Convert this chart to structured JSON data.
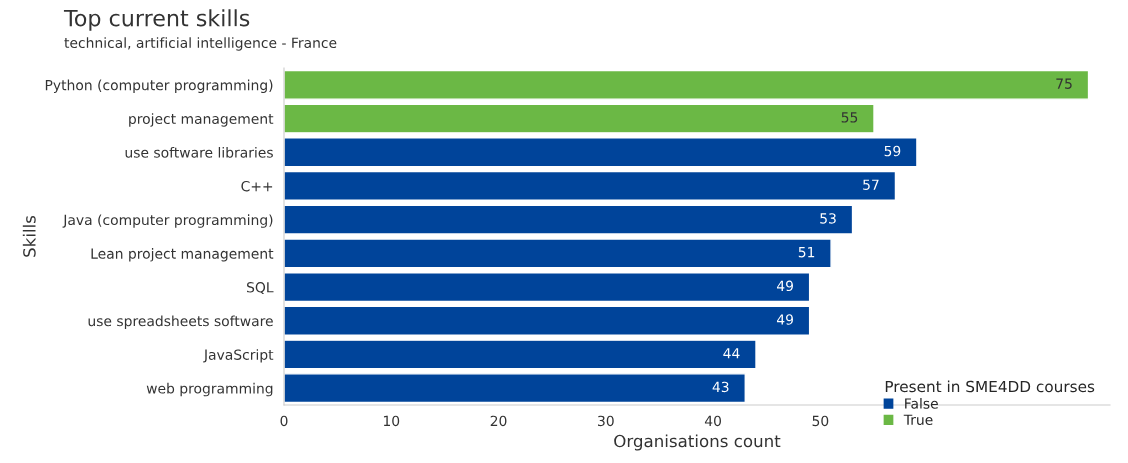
{
  "chart_data": {
    "type": "bar",
    "orientation": "horizontal",
    "title": "Top current skills",
    "subtitle": "technical, artificial intelligence - France",
    "xlabel": "Organisations count",
    "ylabel": "Skills",
    "legend_title": "Present in SME4DD courses",
    "legend": "bottom right",
    "categories": [
      "Python (computer programming)",
      "project management",
      "use software libraries",
      "C++",
      "Java (computer programming)",
      "Lean project management",
      "SQL",
      "use spreadsheets software",
      "JavaScript",
      "web programming"
    ],
    "series": [
      {
        "name": "False",
        "color": "#00449a",
        "values": [
          null,
          null,
          59,
          57,
          53,
          51,
          49,
          49,
          44,
          43
        ]
      },
      {
        "name": "True",
        "color": "#6bb845",
        "values": [
          75,
          55,
          null,
          null,
          null,
          null,
          null,
          null,
          null,
          null
        ]
      }
    ],
    "xlim": [
      0,
      77
    ],
    "xticks": [
      0,
      10,
      20,
      30,
      40,
      50
    ],
    "grid": false,
    "data_labels": true
  }
}
